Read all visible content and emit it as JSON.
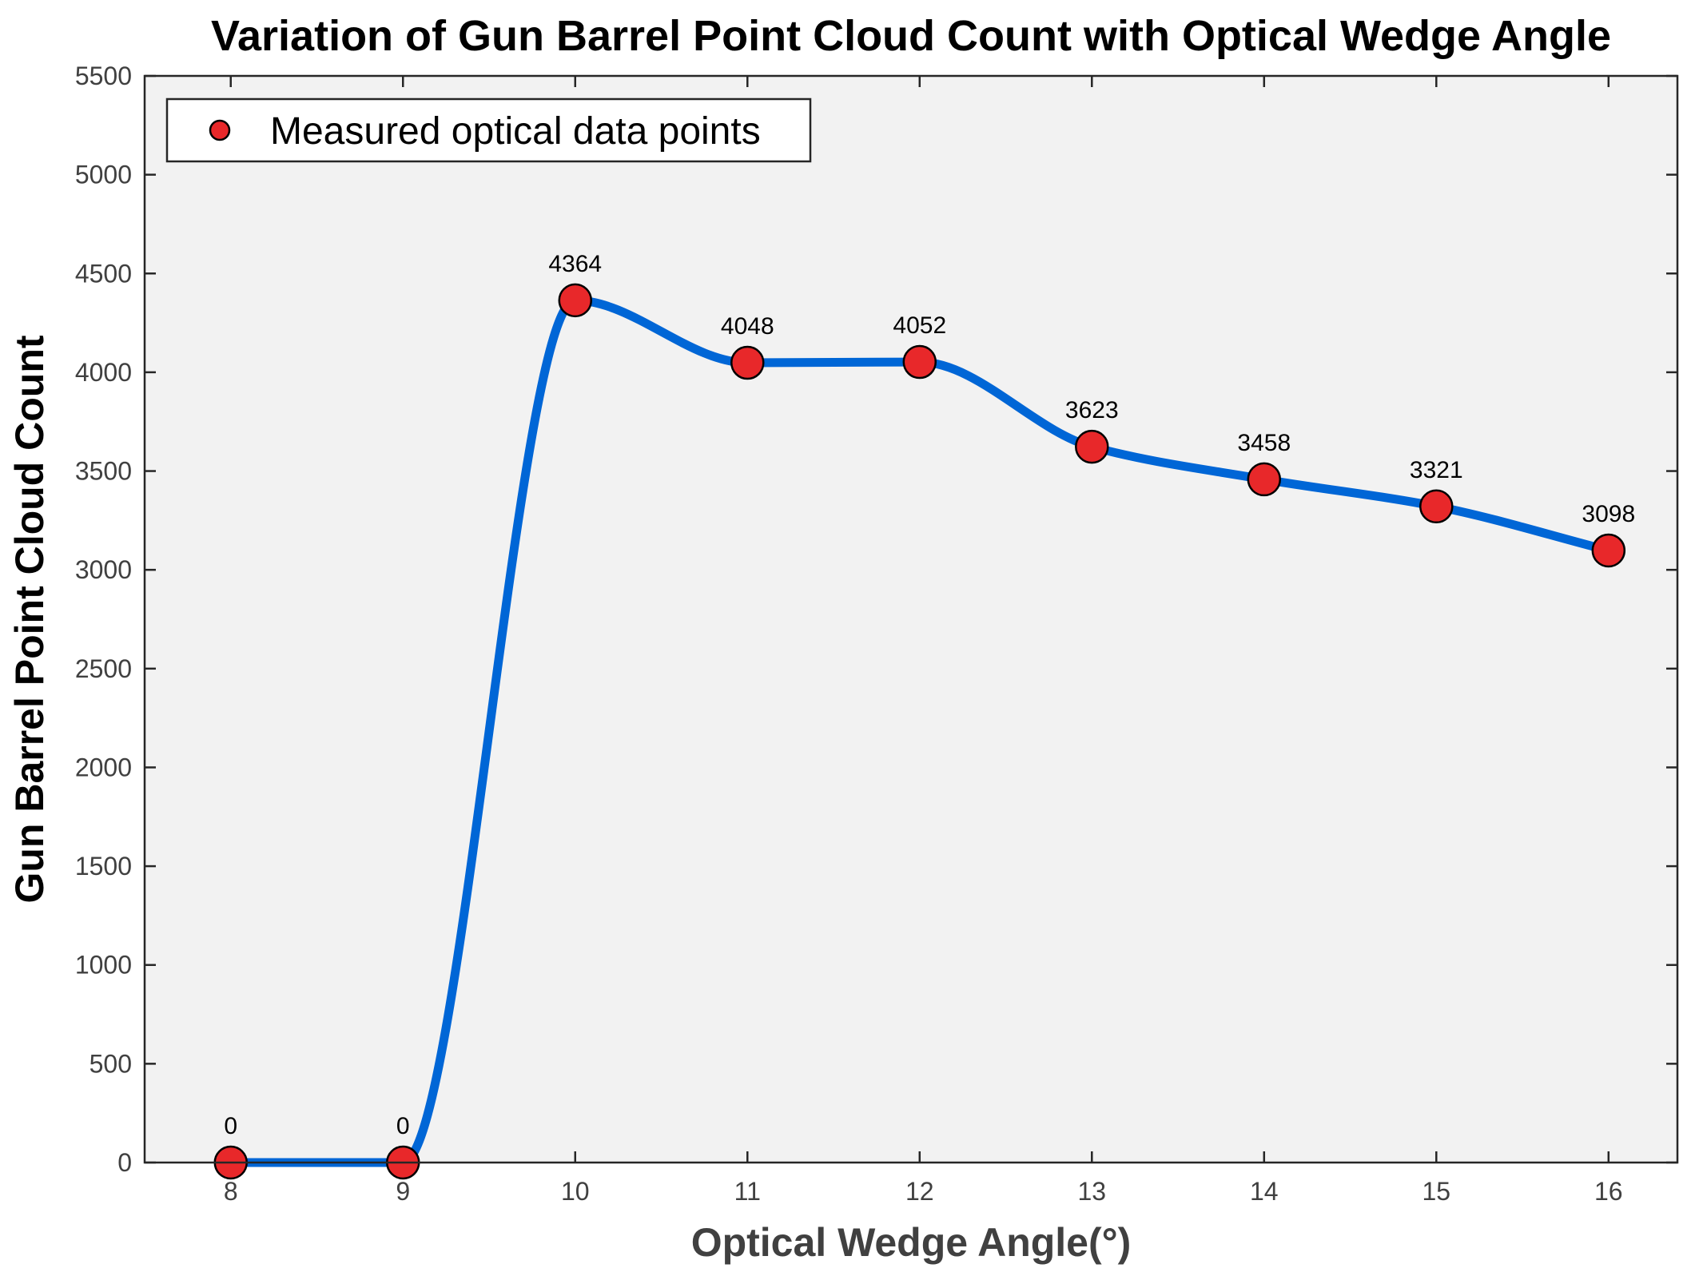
{
  "chart_data": {
    "type": "line",
    "title": "Variation of Gun Barrel Point Cloud Count with Optical Wedge Angle",
    "xlabel": "Optical Wedge Angle(°)",
    "ylabel": "Gun Barrel Point Cloud Count",
    "x": [
      8,
      9,
      10,
      11,
      12,
      13,
      14,
      15,
      16
    ],
    "series": [
      {
        "name": "Measured optical data points",
        "values": [
          0,
          0,
          4364,
          4048,
          4052,
          3623,
          3458,
          3321,
          3098
        ]
      }
    ],
    "data_labels": [
      "0",
      "0",
      "4364",
      "4048",
      "4052",
      "3623",
      "3458",
      "3321",
      "3098"
    ],
    "xlim": [
      7.5,
      16.4
    ],
    "ylim": [
      0,
      5500
    ],
    "xticks": [
      "8",
      "9",
      "10",
      "11",
      "12",
      "13",
      "14",
      "15",
      "16"
    ],
    "yticks": [
      "0",
      "500",
      "1000",
      "1500",
      "2000",
      "2500",
      "3000",
      "3500",
      "4000",
      "4500",
      "5000",
      "5500"
    ],
    "grid": false,
    "legend_position": "top-left",
    "colors": {
      "line": "#0066d6",
      "marker_fill": "#e8282a",
      "marker_edge": "#000000",
      "axes_background": "#f2f2f2"
    }
  }
}
